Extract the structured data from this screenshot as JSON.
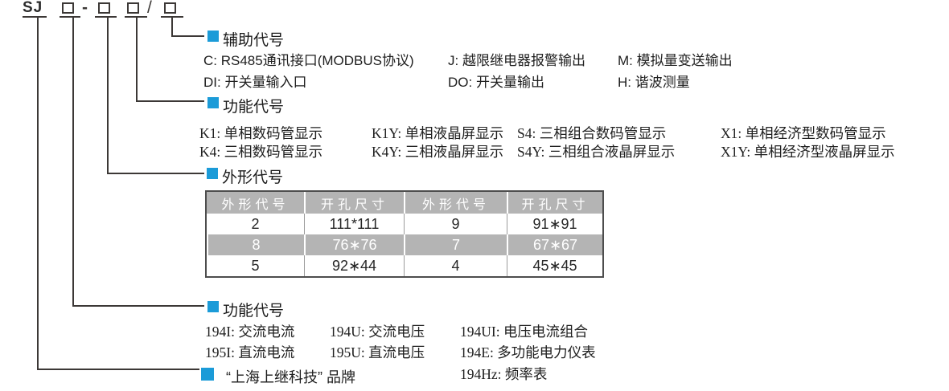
{
  "model_code": {
    "format": "SJ □-□ □/□",
    "prefix": "SJ",
    "dash": "-",
    "slash": "/"
  },
  "sections": {
    "auxiliary": {
      "title": "辅助代号",
      "items": [
        "C: RS485通讯接口(MODBUS协议)",
        "J: 越限继电器报警输出",
        "M: 模拟量变送输出",
        "DI: 开关量输入口",
        "DO: 开关量输出",
        "H: 谐波测量"
      ]
    },
    "function_display": {
      "title": "功能代号",
      "items": [
        "K1: 单相数码管显示",
        "K1Y: 单相液晶屏显示",
        "S4: 三相组合数码管显示",
        "X1: 单相经济型数码管显示",
        "K4: 三相数码管显示",
        "K4Y: 三相液晶屏显示",
        "S4Y: 三相组合液晶屏显示",
        "X1Y: 单相经济型液晶屏显示"
      ]
    },
    "shape": {
      "title": "外形代号",
      "table": {
        "headers": [
          "外形代号",
          "开孔尺寸",
          "外形代号",
          "开孔尺寸"
        ],
        "rows": [
          [
            "2",
            "111*111",
            "9",
            "91∗91"
          ],
          [
            "8",
            "76∗76",
            "7",
            "67∗67"
          ],
          [
            "5",
            "92∗44",
            "4",
            "45∗45"
          ]
        ]
      }
    },
    "function_type": {
      "title": "功能代号",
      "items": [
        "194I: 交流电流",
        "194U: 交流电压",
        "194UI: 电压电流组合",
        "195I: 直流电流",
        "195U: 直流电压",
        "194E: 多功能电力仪表",
        "194Hz: 频率表"
      ]
    },
    "brand": {
      "label": "“上海上继科技” 品牌"
    }
  },
  "colors": {
    "accent_blue": "#1b9bd8",
    "line": "#3c3836",
    "table_gray": "#b4b4b4"
  }
}
